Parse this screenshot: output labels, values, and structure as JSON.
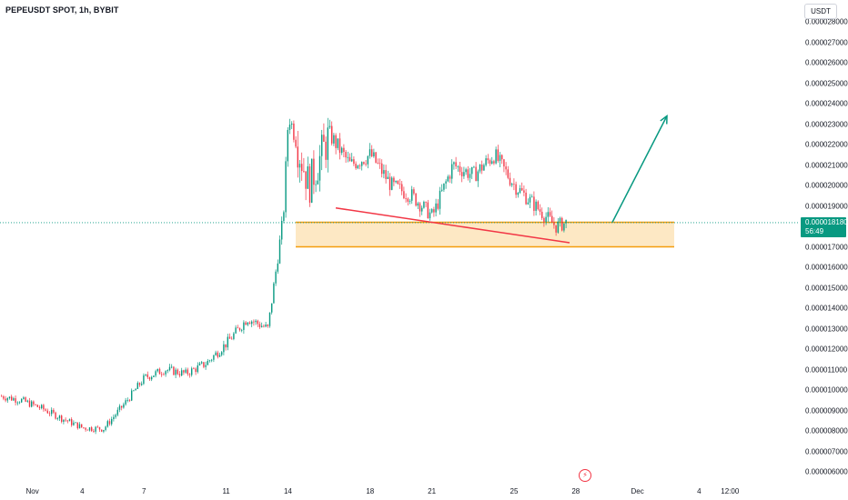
{
  "header": {
    "symbol_title": "PEPEUSDT SPOT, 1h, BYBIT"
  },
  "price_axis": {
    "currency": "USDT",
    "ticks": [
      "0.000028000",
      "0.000027000",
      "0.000026000",
      "0.000025000",
      "0.000024000",
      "0.000023000",
      "0.000022000",
      "0.000021000",
      "0.000020000",
      "0.000019000",
      "0.000017000",
      "0.000016000",
      "0.000015000",
      "0.000014000",
      "0.000013000",
      "0.000012000",
      "0.000011000",
      "0.000010000",
      "0.000009000",
      "0.000008000",
      "0.000007000",
      "0.000006000"
    ]
  },
  "time_axis": {
    "ticks": [
      "Nov",
      "4",
      "7",
      "11",
      "14",
      "18",
      "21",
      "25",
      "28",
      "Dec",
      "4",
      "12:00"
    ]
  },
  "last_price": {
    "value": "0.000018180",
    "countdown": "56:49"
  },
  "event_icon": "lightning-icon",
  "colors": {
    "up": "#089981",
    "down": "#f23645",
    "zone_fill": "#fde8c4",
    "zone_border": "#f59d0e",
    "trend_line": "#f23645",
    "arrow": "#089981",
    "price_line": "#089981"
  },
  "chart_data": {
    "type": "candlestick",
    "title": "PEPEUSDT SPOT, 1h, BYBIT",
    "ylim": [
      6e-06,
      2.8e-05
    ],
    "x_range": [
      "2024-10-31",
      "2024-12-05"
    ],
    "grid": false,
    "last_price": 1.818e-05,
    "price_path": [
      [
        "2024-10-31",
        9.7e-06
      ],
      [
        "2024-11-01",
        9.5e-06
      ],
      [
        "2024-11-02",
        9.1e-06
      ],
      [
        "2024-11-03",
        8.6e-06
      ],
      [
        "2024-11-04",
        8.15e-06
      ],
      [
        "2024-11-05",
        8.1e-06
      ],
      [
        "2024-11-06",
        9.3e-06
      ],
      [
        "2024-11-07",
        1.06e-05
      ],
      [
        "2024-11-08",
        1.1e-05
      ],
      [
        "2024-11-09",
        1.08e-05
      ],
      [
        "2024-11-10",
        1.13e-05
      ],
      [
        "2024-11-11",
        1.23e-05
      ],
      [
        "2024-11-12",
        1.35e-05
      ],
      [
        "2024-11-13",
        1.3e-05
      ],
      [
        "2024-11-13T18:00",
        1.85e-05
      ],
      [
        "2024-11-14",
        2.35e-05
      ],
      [
        "2024-11-15",
        2e-05
      ],
      [
        "2024-11-16",
        2.25e-05
      ],
      [
        "2024-11-17",
        2.1e-05
      ],
      [
        "2024-11-18",
        2.15e-05
      ],
      [
        "2024-11-19",
        2e-05
      ],
      [
        "2024-11-20",
        1.95e-05
      ],
      [
        "2024-11-21",
        1.85e-05
      ],
      [
        "2024-11-22",
        2.1e-05
      ],
      [
        "2024-11-23",
        2.05e-05
      ],
      [
        "2024-11-24",
        2.15e-05
      ],
      [
        "2024-11-25",
        2e-05
      ],
      [
        "2024-11-26",
        1.9e-05
      ],
      [
        "2024-11-27",
        1.8e-05
      ],
      [
        "2024-11-27T12:00",
        1.818e-05
      ]
    ],
    "annotations": {
      "support_zone": [
        1.7e-05,
        1.82e-05
      ],
      "trend_line": [
        [
          "2024-11-15",
          1.89e-05
        ],
        [
          "2024-11-26T12:00",
          1.72e-05
        ]
      ],
      "projection_arrow": [
        [
          "2024-11-28T12:00",
          1.82e-05
        ],
        [
          "2024-12-02",
          2.34e-05
        ]
      ]
    }
  }
}
